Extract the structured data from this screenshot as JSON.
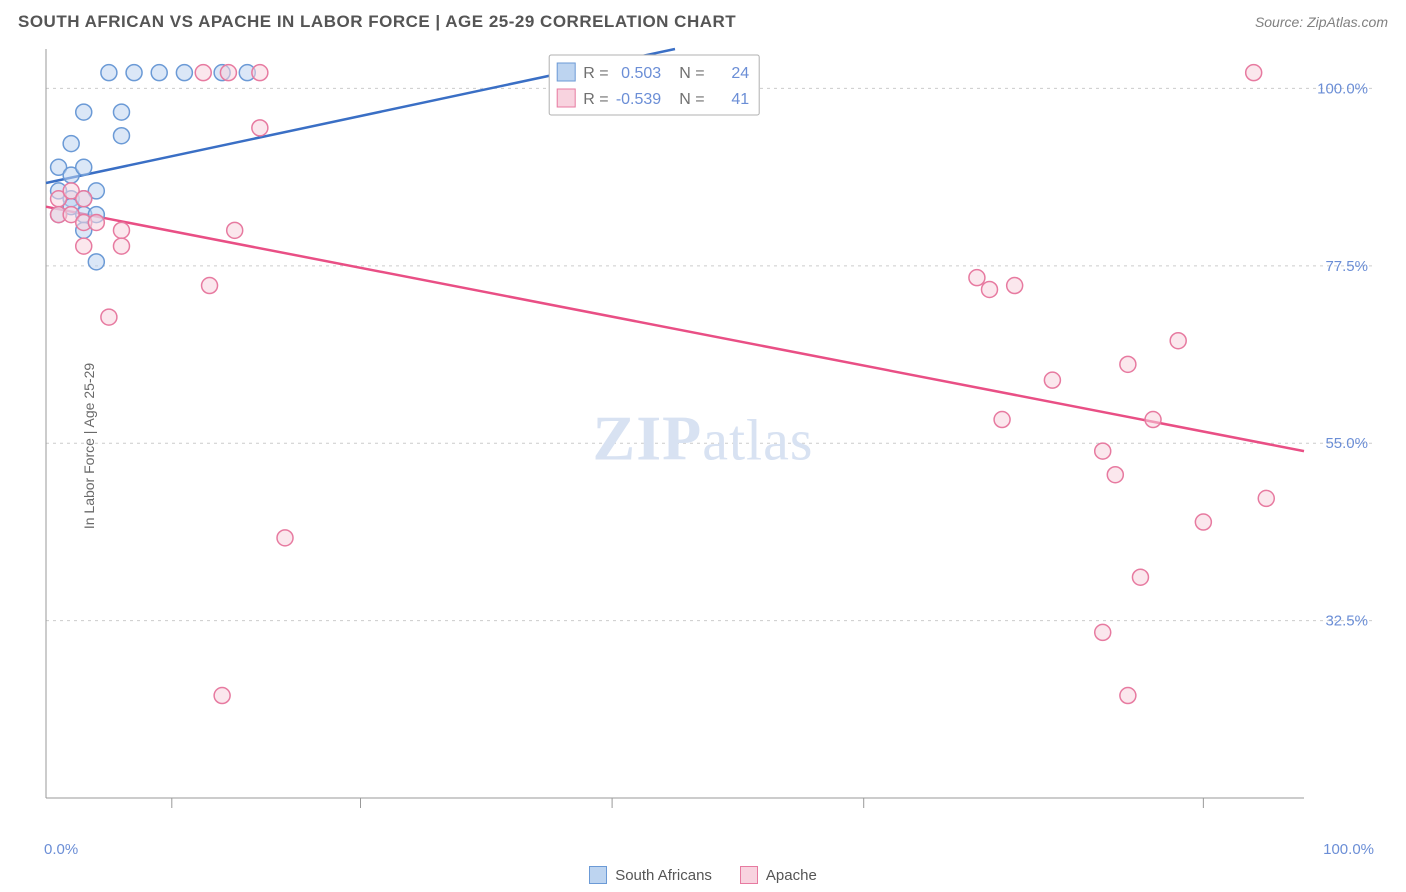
{
  "header": {
    "title": "SOUTH AFRICAN VS APACHE IN LABOR FORCE | AGE 25-29 CORRELATION CHART",
    "source": "Source: ZipAtlas.com"
  },
  "ylabel": "In Labor Force | Age 25-29",
  "watermark": "ZIPatlas",
  "chart": {
    "type": "scatter",
    "xlim": [
      0,
      100
    ],
    "ylim": [
      10,
      105
    ],
    "x_extent_labels": {
      "min": "0.0%",
      "max": "100.0%"
    },
    "y_ticks": [
      {
        "v": 100.0,
        "label": "100.0%"
      },
      {
        "v": 77.5,
        "label": "77.5%"
      },
      {
        "v": 55.0,
        "label": "55.0%"
      },
      {
        "v": 32.5,
        "label": "32.5%"
      }
    ],
    "x_tick_positions": [
      10,
      25,
      45,
      65,
      92
    ],
    "grid_color": "#cccccc",
    "axis_color": "#999999",
    "background_color": "#ffffff",
    "marker_radius": 8,
    "marker_stroke_width": 1.5,
    "line_width": 2.5,
    "label_color": "#6b8ed6",
    "series": [
      {
        "name": "South Africans",
        "marker_fill": "#bdd4f0",
        "marker_stroke": "#6b9ad6",
        "line_color": "#3a6fc5",
        "trend": {
          "x1": 0,
          "y1": 88,
          "x2": 50,
          "y2": 105
        },
        "R": "0.503",
        "N": "24",
        "points": [
          {
            "x": 5,
            "y": 102
          },
          {
            "x": 7,
            "y": 102
          },
          {
            "x": 9,
            "y": 102
          },
          {
            "x": 11,
            "y": 102
          },
          {
            "x": 14,
            "y": 102
          },
          {
            "x": 16,
            "y": 102
          },
          {
            "x": 51,
            "y": 102
          },
          {
            "x": 3,
            "y": 97
          },
          {
            "x": 6,
            "y": 97
          },
          {
            "x": 2,
            "y": 93
          },
          {
            "x": 6,
            "y": 94
          },
          {
            "x": 1,
            "y": 90
          },
          {
            "x": 2,
            "y": 89
          },
          {
            "x": 3,
            "y": 90
          },
          {
            "x": 1,
            "y": 87
          },
          {
            "x": 2,
            "y": 86
          },
          {
            "x": 3,
            "y": 86
          },
          {
            "x": 4,
            "y": 87
          },
          {
            "x": 1,
            "y": 84
          },
          {
            "x": 2,
            "y": 85
          },
          {
            "x": 3,
            "y": 84
          },
          {
            "x": 4,
            "y": 84
          },
          {
            "x": 3,
            "y": 82
          },
          {
            "x": 4,
            "y": 78
          }
        ]
      },
      {
        "name": "Apache",
        "marker_fill": "#f8d3df",
        "marker_stroke": "#e77aa0",
        "line_color": "#e94f85",
        "trend": {
          "x1": 0,
          "y1": 85,
          "x2": 100,
          "y2": 54
        },
        "R": "-0.539",
        "N": "41",
        "points": [
          {
            "x": 12.5,
            "y": 102
          },
          {
            "x": 14.5,
            "y": 102
          },
          {
            "x": 17,
            "y": 102
          },
          {
            "x": 96,
            "y": 102
          },
          {
            "x": 17,
            "y": 95
          },
          {
            "x": 1,
            "y": 86
          },
          {
            "x": 2,
            "y": 87
          },
          {
            "x": 3,
            "y": 86
          },
          {
            "x": 1,
            "y": 84
          },
          {
            "x": 2,
            "y": 84
          },
          {
            "x": 3,
            "y": 83
          },
          {
            "x": 4,
            "y": 83
          },
          {
            "x": 6,
            "y": 82
          },
          {
            "x": 15,
            "y": 82
          },
          {
            "x": 3,
            "y": 80
          },
          {
            "x": 6,
            "y": 80
          },
          {
            "x": 74,
            "y": 76
          },
          {
            "x": 75,
            "y": 74.5
          },
          {
            "x": 77,
            "y": 75
          },
          {
            "x": 13,
            "y": 75
          },
          {
            "x": 5,
            "y": 71
          },
          {
            "x": 90,
            "y": 68
          },
          {
            "x": 86,
            "y": 65
          },
          {
            "x": 80,
            "y": 63
          },
          {
            "x": 76,
            "y": 58
          },
          {
            "x": 88,
            "y": 58
          },
          {
            "x": 84,
            "y": 54
          },
          {
            "x": 85,
            "y": 51
          },
          {
            "x": 97,
            "y": 48
          },
          {
            "x": 92,
            "y": 45
          },
          {
            "x": 19,
            "y": 43
          },
          {
            "x": 87,
            "y": 38
          },
          {
            "x": 84,
            "y": 31
          },
          {
            "x": 14,
            "y": 23
          },
          {
            "x": 86,
            "y": 23
          }
        ]
      }
    ],
    "stats_box": {
      "label_R": "R =",
      "label_N": "N =",
      "border_color": "#b0b0b0",
      "text_color": "#707070",
      "value_color": "#6b8ed6"
    },
    "legend": {
      "items": [
        {
          "label": "South Africans",
          "fill": "#bdd4f0",
          "stroke": "#6b9ad6"
        },
        {
          "label": "Apache",
          "fill": "#f8d3df",
          "stroke": "#e77aa0"
        }
      ]
    }
  }
}
